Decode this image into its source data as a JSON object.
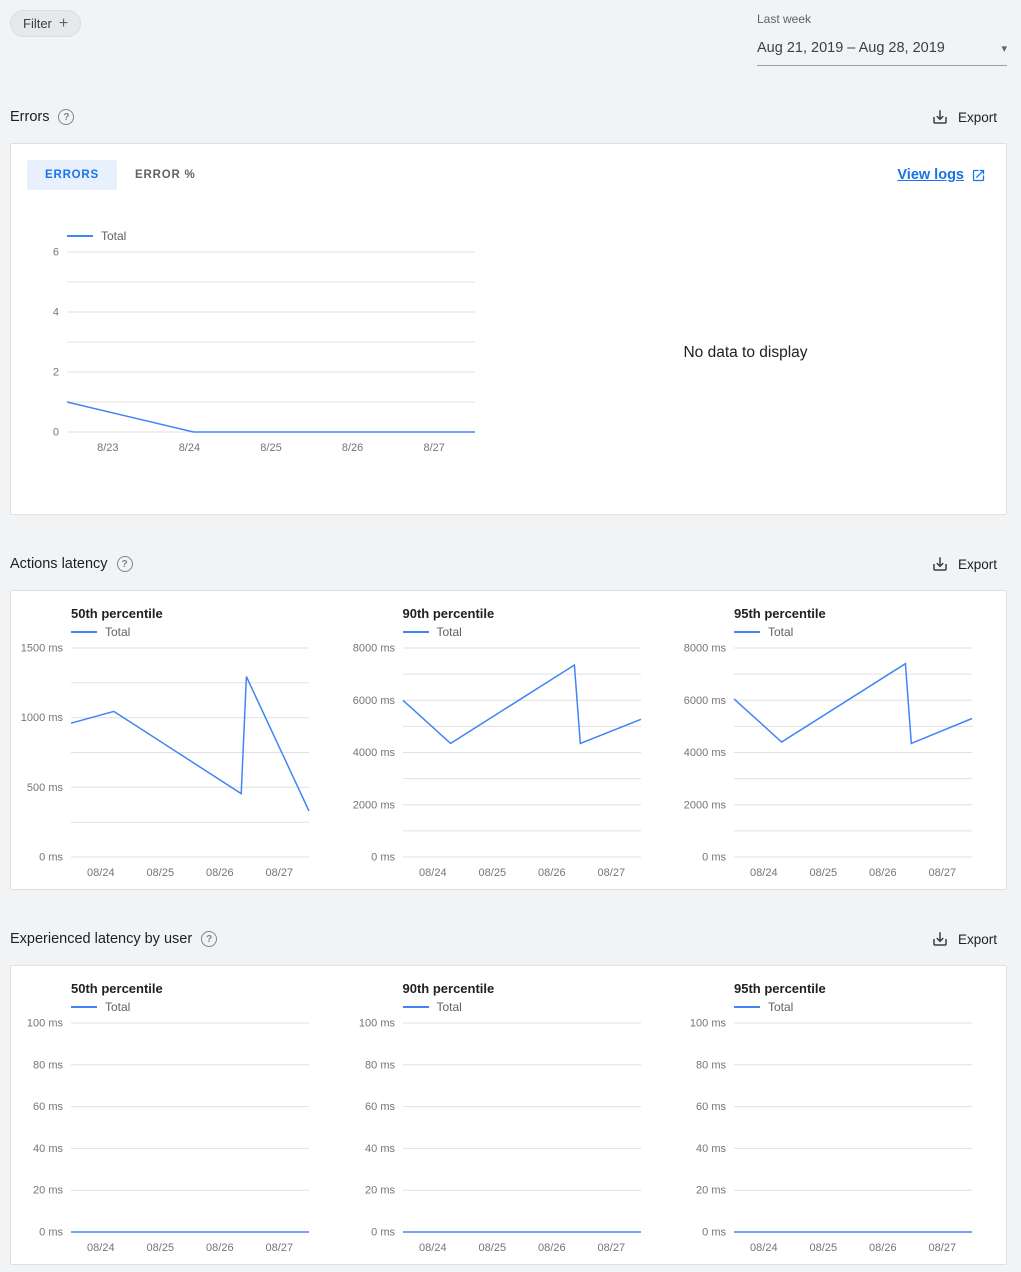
{
  "header": {
    "filter_label": "Filter",
    "range_caption": "Last week",
    "range_value": "Aug 21, 2019 – Aug 28, 2019"
  },
  "icons": {
    "plus": "+",
    "caret": "▾",
    "help": "?"
  },
  "colors": {
    "accent": "#1a73e8",
    "line": "#4285f4",
    "tab_active_bg": "#e8f0fe",
    "grid": "#e0e0e0",
    "tick": "#757575"
  },
  "errors_section": {
    "title": "Errors",
    "export_label": "Export",
    "tabs": [
      {
        "label": "ERRORS",
        "active": true
      },
      {
        "label": "ERROR %",
        "active": false
      }
    ],
    "view_logs_label": "View logs",
    "no_data_text": "No data to display"
  },
  "actions_latency_section": {
    "title": "Actions latency",
    "export_label": "Export"
  },
  "user_latency_section": {
    "title": "Experienced latency by user",
    "export_label": "Export"
  },
  "chart_data": [
    {
      "id": "errors-total",
      "type": "line",
      "title": "",
      "legend": [
        "Total"
      ],
      "ylim": [
        0,
        6
      ],
      "yticks": [
        {
          "value": 0,
          "label": "0"
        },
        {
          "value": 2,
          "label": "2"
        },
        {
          "value": 4,
          "label": "4"
        },
        {
          "value": 6,
          "label": "6"
        }
      ],
      "minor_gridlines": true,
      "xticklabels": [
        "8/23",
        "8/24",
        "8/25",
        "8/26",
        "8/27"
      ],
      "series": [
        {
          "name": "Total",
          "points": [
            [
              0,
              1
            ],
            [
              0.31,
              0
            ],
            [
              1,
              0
            ]
          ]
        }
      ]
    },
    {
      "id": "actions-latency-50th",
      "type": "line",
      "title": "50th percentile",
      "legend": [
        "Total"
      ],
      "ylim": [
        0,
        1500
      ],
      "yticks": [
        {
          "value": 0,
          "label": "0 ms"
        },
        {
          "value": 500,
          "label": "500 ms"
        },
        {
          "value": 1000,
          "label": "1000 ms"
        },
        {
          "value": 1500,
          "label": "1500 ms"
        }
      ],
      "minor_gridlines": true,
      "xticklabels": [
        "08/24",
        "08/25",
        "08/26",
        "08/27"
      ],
      "series": [
        {
          "name": "Total",
          "points": [
            [
              0,
              960
            ],
            [
              0.18,
              1045
            ],
            [
              0.715,
              455
            ],
            [
              0.737,
              1295
            ],
            [
              1,
              330
            ]
          ]
        }
      ]
    },
    {
      "id": "actions-latency-90th",
      "type": "line",
      "title": "90th percentile",
      "legend": [
        "Total"
      ],
      "ylim": [
        0,
        8000
      ],
      "yticks": [
        {
          "value": 0,
          "label": "0 ms"
        },
        {
          "value": 2000,
          "label": "2000 ms"
        },
        {
          "value": 4000,
          "label": "4000 ms"
        },
        {
          "value": 6000,
          "label": "6000 ms"
        },
        {
          "value": 8000,
          "label": "8000 ms"
        }
      ],
      "minor_gridlines": true,
      "xticklabels": [
        "08/24",
        "08/25",
        "08/26",
        "08/27"
      ],
      "series": [
        {
          "name": "Total",
          "points": [
            [
              0,
              6000
            ],
            [
              0.2,
              4350
            ],
            [
              0.72,
              7350
            ],
            [
              0.745,
              4350
            ],
            [
              1,
              5270
            ]
          ]
        }
      ]
    },
    {
      "id": "actions-latency-95th",
      "type": "line",
      "title": "95th percentile",
      "legend": [
        "Total"
      ],
      "ylim": [
        0,
        8000
      ],
      "yticks": [
        {
          "value": 0,
          "label": "0 ms"
        },
        {
          "value": 2000,
          "label": "2000 ms"
        },
        {
          "value": 4000,
          "label": "4000 ms"
        },
        {
          "value": 6000,
          "label": "6000 ms"
        },
        {
          "value": 8000,
          "label": "8000 ms"
        }
      ],
      "minor_gridlines": true,
      "xticklabels": [
        "08/24",
        "08/25",
        "08/26",
        "08/27"
      ],
      "series": [
        {
          "name": "Total",
          "points": [
            [
              0,
              6050
            ],
            [
              0.2,
              4400
            ],
            [
              0.72,
              7400
            ],
            [
              0.745,
              4350
            ],
            [
              1,
              5300
            ]
          ]
        }
      ]
    },
    {
      "id": "user-latency-50th",
      "type": "line",
      "title": "50th percentile",
      "legend": [
        "Total"
      ],
      "ylim": [
        0,
        100
      ],
      "yticks": [
        {
          "value": 0,
          "label": "0 ms"
        },
        {
          "value": 20,
          "label": "20 ms"
        },
        {
          "value": 40,
          "label": "40 ms"
        },
        {
          "value": 60,
          "label": "60 ms"
        },
        {
          "value": 80,
          "label": "80 ms"
        },
        {
          "value": 100,
          "label": "100 ms"
        }
      ],
      "minor_gridlines": false,
      "xticklabels": [
        "08/24",
        "08/25",
        "08/26",
        "08/27"
      ],
      "series": [
        {
          "name": "Total",
          "points": [
            [
              0,
              0
            ],
            [
              1,
              0
            ]
          ]
        }
      ]
    },
    {
      "id": "user-latency-90th",
      "type": "line",
      "title": "90th percentile",
      "legend": [
        "Total"
      ],
      "ylim": [
        0,
        100
      ],
      "yticks": [
        {
          "value": 0,
          "label": "0 ms"
        },
        {
          "value": 20,
          "label": "20 ms"
        },
        {
          "value": 40,
          "label": "40 ms"
        },
        {
          "value": 60,
          "label": "60 ms"
        },
        {
          "value": 80,
          "label": "80 ms"
        },
        {
          "value": 100,
          "label": "100 ms"
        }
      ],
      "minor_gridlines": false,
      "xticklabels": [
        "08/24",
        "08/25",
        "08/26",
        "08/27"
      ],
      "series": [
        {
          "name": "Total",
          "points": [
            [
              0,
              0
            ],
            [
              1,
              0
            ]
          ]
        }
      ]
    },
    {
      "id": "user-latency-95th",
      "type": "line",
      "title": "95th percentile",
      "legend": [
        "Total"
      ],
      "ylim": [
        0,
        100
      ],
      "yticks": [
        {
          "value": 0,
          "label": "0 ms"
        },
        {
          "value": 20,
          "label": "20 ms"
        },
        {
          "value": 40,
          "label": "40 ms"
        },
        {
          "value": 60,
          "label": "60 ms"
        },
        {
          "value": 80,
          "label": "80 ms"
        },
        {
          "value": 100,
          "label": "100 ms"
        }
      ],
      "minor_gridlines": false,
      "xticklabels": [
        "08/24",
        "08/25",
        "08/26",
        "08/27"
      ],
      "series": [
        {
          "name": "Total",
          "points": [
            [
              0,
              0
            ],
            [
              1,
              0
            ]
          ]
        }
      ]
    }
  ]
}
